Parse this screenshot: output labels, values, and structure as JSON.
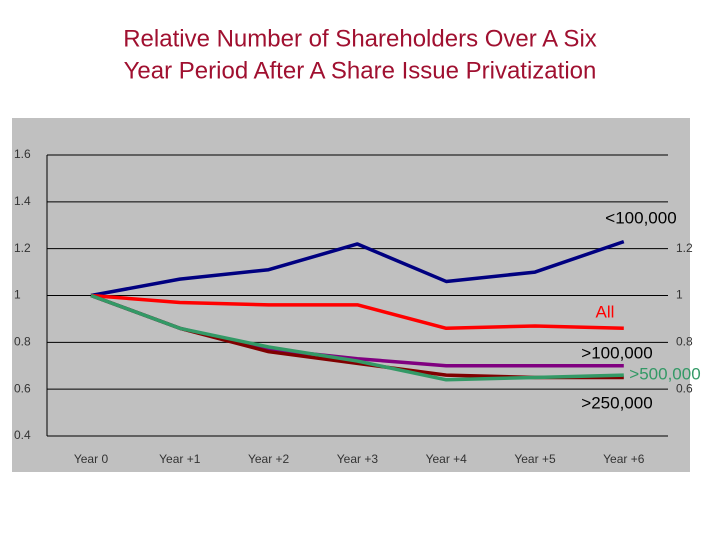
{
  "chart_data": {
    "type": "line",
    "title": [
      "Relative Number of Shareholders Over A Six",
      "Year Period After A Share Issue Privatization"
    ],
    "categories": [
      "Year 0",
      "Year +1",
      "Year +2",
      "Year +3",
      "Year +4",
      "Year +5",
      "Year +6"
    ],
    "series": [
      {
        "name": "<100,000",
        "color": "#000080",
        "values": [
          1.0,
          1.07,
          1.11,
          1.22,
          1.06,
          1.1,
          1.23
        ]
      },
      {
        "name": "All",
        "color": "#ff0000",
        "values": [
          1.0,
          0.97,
          0.96,
          0.96,
          0.86,
          0.87,
          0.86
        ]
      },
      {
        "name": ">100,000",
        "color": "#800080",
        "values": [
          1.0,
          0.86,
          0.77,
          0.73,
          0.7,
          0.7,
          0.7
        ]
      },
      {
        "name": ">250,000",
        "color": "#800000",
        "values": [
          1.0,
          0.86,
          0.76,
          0.71,
          0.66,
          0.65,
          0.65
        ]
      },
      {
        "name": ">500,000",
        "color": "#339966",
        "values": [
          1.0,
          0.86,
          0.78,
          0.72,
          0.64,
          0.65,
          0.66
        ]
      }
    ],
    "ylim": [
      0.4,
      1.6
    ],
    "yticks": [
      0.4,
      0.6,
      0.8,
      1,
      1.2,
      1.4,
      1.6
    ],
    "y2lim": [
      0.4,
      1.6
    ],
    "y2ticks": [
      0.6,
      0.8,
      1,
      1.2
    ],
    "grid": true
  }
}
